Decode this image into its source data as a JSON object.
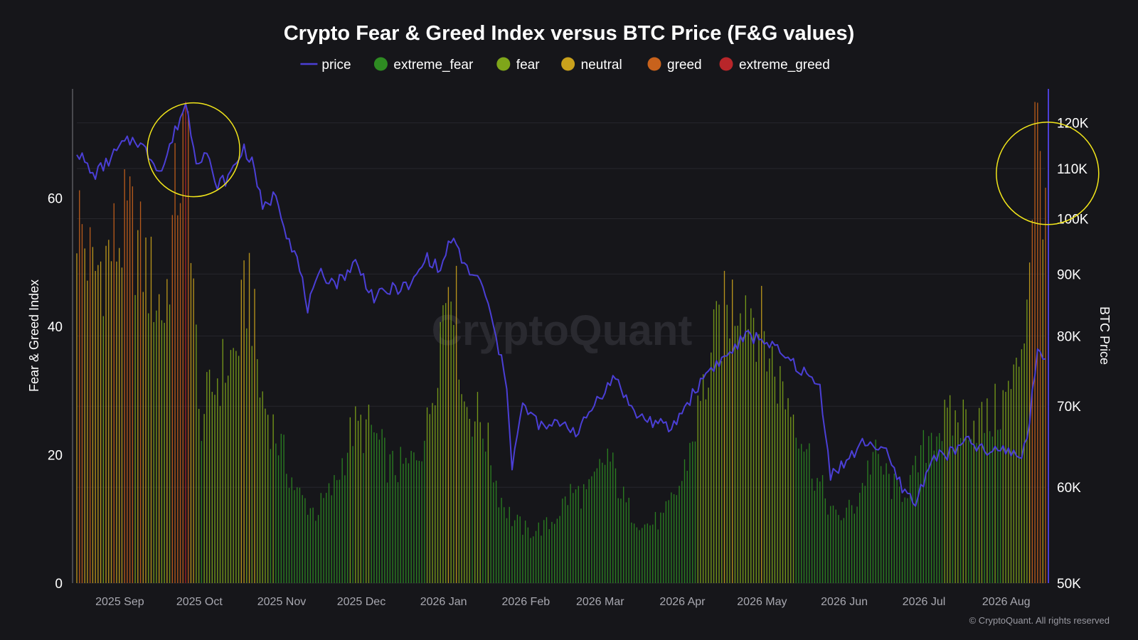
{
  "chart_data": {
    "type": "bar",
    "title": "Crypto Fear & Greed Index versus BTC Price (F&G values)",
    "legend": [
      {
        "name": "price",
        "color": "#4b3fd6",
        "marker": "line"
      },
      {
        "name": "extreme_fear",
        "color": "#2e8b22",
        "marker": "dot"
      },
      {
        "name": "fear",
        "color": "#7fa61a",
        "marker": "dot"
      },
      {
        "name": "neutral",
        "color": "#c9a11c",
        "marker": "dot"
      },
      {
        "name": "greed",
        "color": "#c8621c",
        "marker": "dot"
      },
      {
        "name": "extreme_greed",
        "color": "#b8262a",
        "marker": "dot"
      }
    ],
    "legend_position": "top-center",
    "ylabel": "Fear & Greed Index",
    "y2label": "BTC Price",
    "ylim": [
      0,
      77
    ],
    "yticks": [
      0,
      20,
      40,
      60
    ],
    "y2lim": [
      50000,
      128000
    ],
    "y2_scale": "log",
    "y2ticks": [
      {
        "value": 50000,
        "label": "50K"
      },
      {
        "value": 60000,
        "label": "60K"
      },
      {
        "value": 70000,
        "label": "70K"
      },
      {
        "value": 80000,
        "label": "80K"
      },
      {
        "value": 90000,
        "label": "90K"
      },
      {
        "value": 100000,
        "label": "100K"
      },
      {
        "value": 110000,
        "label": "110K"
      },
      {
        "value": 120000,
        "label": "120K"
      }
    ],
    "xrange": [
      "2025-08-26",
      "2026-08-26"
    ],
    "xticks": [
      {
        "date": "2025-09-01",
        "label": "2025 Sep"
      },
      {
        "date": "2025-10-01",
        "label": "2025 Oct"
      },
      {
        "date": "2025-11-01",
        "label": "2025 Nov"
      },
      {
        "date": "2025-12-01",
        "label": "2025 Dec"
      },
      {
        "date": "2026-01-01",
        "label": "2026 Jan"
      },
      {
        "date": "2026-02-01",
        "label": "2026 Feb"
      },
      {
        "date": "2026-03-01",
        "label": "2026 Mar"
      },
      {
        "date": "2026-04-01",
        "label": "2026 Apr"
      },
      {
        "date": "2026-05-01",
        "label": "2026 May"
      },
      {
        "date": "2026-06-01",
        "label": "2026 Jun"
      },
      {
        "date": "2026-07-01",
        "label": "2026 Jul"
      },
      {
        "date": "2026-08-01",
        "label": "2026 Aug"
      }
    ],
    "grid": true,
    "fg_series_approx": [
      [
        "2025-08-26",
        58
      ],
      [
        "2025-09-01",
        48
      ],
      [
        "2025-09-08",
        52
      ],
      [
        "2025-09-15",
        56
      ],
      [
        "2025-09-22",
        48
      ],
      [
        "2025-09-28",
        42
      ],
      [
        "2025-10-03",
        63
      ],
      [
        "2025-10-07",
        70
      ],
      [
        "2025-10-11",
        25
      ],
      [
        "2025-10-18",
        32
      ],
      [
        "2025-10-25",
        36
      ],
      [
        "2025-10-30",
        48
      ],
      [
        "2025-11-03",
        30
      ],
      [
        "2025-11-10",
        22
      ],
      [
        "2025-11-17",
        14
      ],
      [
        "2025-11-24",
        11
      ],
      [
        "2025-12-01",
        15
      ],
      [
        "2025-12-08",
        24
      ],
      [
        "2025-12-15",
        24
      ],
      [
        "2025-12-22",
        18
      ],
      [
        "2025-12-29",
        18
      ],
      [
        "2026-01-05",
        24
      ],
      [
        "2026-01-10",
        40
      ],
      [
        "2026-01-14",
        52
      ],
      [
        "2026-01-19",
        28
      ],
      [
        "2026-01-26",
        25
      ],
      [
        "2026-02-01",
        14
      ],
      [
        "2026-02-06",
        10
      ],
      [
        "2026-02-12",
        8
      ],
      [
        "2026-02-20",
        9
      ],
      [
        "2026-02-28",
        14
      ],
      [
        "2026-03-07",
        14
      ],
      [
        "2026-03-14",
        20
      ],
      [
        "2026-03-21",
        12
      ],
      [
        "2026-03-28",
        9
      ],
      [
        "2026-04-04",
        10
      ],
      [
        "2026-04-11",
        16
      ],
      [
        "2026-04-18",
        28
      ],
      [
        "2026-04-25",
        40
      ],
      [
        "2026-05-03",
        46
      ],
      [
        "2026-05-09",
        42
      ],
      [
        "2026-05-17",
        32
      ],
      [
        "2026-05-24",
        26
      ],
      [
        "2026-06-01",
        16
      ],
      [
        "2026-06-08",
        10
      ],
      [
        "2026-06-15",
        12
      ],
      [
        "2026-06-22",
        20
      ],
      [
        "2026-07-01",
        14
      ],
      [
        "2026-07-07",
        16
      ],
      [
        "2026-07-14",
        24
      ],
      [
        "2026-07-21",
        25
      ],
      [
        "2026-07-28",
        26
      ],
      [
        "2026-08-04",
        25
      ],
      [
        "2026-08-10",
        28
      ],
      [
        "2026-08-15",
        32
      ],
      [
        "2026-08-19",
        45
      ],
      [
        "2026-08-22",
        70
      ],
      [
        "2026-08-25",
        64
      ]
    ],
    "price_series_approx": [
      [
        "2025-08-26",
        114000
      ],
      [
        "2025-09-01",
        108500
      ],
      [
        "2025-09-06",
        111000
      ],
      [
        "2025-09-12",
        115000
      ],
      [
        "2025-09-17",
        116500
      ],
      [
        "2025-09-22",
        113000
      ],
      [
        "2025-09-27",
        109500
      ],
      [
        "2025-10-02",
        118000
      ],
      [
        "2025-10-06",
        124500
      ],
      [
        "2025-10-10",
        112000
      ],
      [
        "2025-10-14",
        113500
      ],
      [
        "2025-10-17",
        106500
      ],
      [
        "2025-10-22",
        108000
      ],
      [
        "2025-10-28",
        114500
      ],
      [
        "2025-11-01",
        110000
      ],
      [
        "2025-11-04",
        101500
      ],
      [
        "2025-11-09",
        105000
      ],
      [
        "2025-11-13",
        97500
      ],
      [
        "2025-11-17",
        92500
      ],
      [
        "2025-11-21",
        84500
      ],
      [
        "2025-11-26",
        90000
      ],
      [
        "2025-12-02",
        88500
      ],
      [
        "2025-12-09",
        92000
      ],
      [
        "2025-12-16",
        86000
      ],
      [
        "2025-12-23",
        87500
      ],
      [
        "2025-12-30",
        88000
      ],
      [
        "2026-01-05",
        93000
      ],
      [
        "2026-01-10",
        90500
      ],
      [
        "2026-01-14",
        96500
      ],
      [
        "2026-01-19",
        91500
      ],
      [
        "2026-01-26",
        88000
      ],
      [
        "2026-01-31",
        79500
      ],
      [
        "2026-02-04",
        73000
      ],
      [
        "2026-02-06",
        62500
      ],
      [
        "2026-02-10",
        70000
      ],
      [
        "2026-02-18",
        67000
      ],
      [
        "2026-02-25",
        68000
      ],
      [
        "2026-03-03",
        66500
      ],
      [
        "2026-03-10",
        71000
      ],
      [
        "2026-03-17",
        74000
      ],
      [
        "2026-03-24",
        69000
      ],
      [
        "2026-03-31",
        68000
      ],
      [
        "2026-04-07",
        67000
      ],
      [
        "2026-04-14",
        71000
      ],
      [
        "2026-04-21",
        75000
      ],
      [
        "2026-04-28",
        77000
      ],
      [
        "2026-05-05",
        80000
      ],
      [
        "2026-05-12",
        79500
      ],
      [
        "2026-05-19",
        77000
      ],
      [
        "2026-05-26",
        75000
      ],
      [
        "2026-06-02",
        72500
      ],
      [
        "2026-06-06",
        61500
      ],
      [
        "2026-06-12",
        63000
      ],
      [
        "2026-06-19",
        65500
      ],
      [
        "2026-06-26",
        64500
      ],
      [
        "2026-07-02",
        60500
      ],
      [
        "2026-07-08",
        58000
      ],
      [
        "2026-07-14",
        63500
      ],
      [
        "2026-07-21",
        64000
      ],
      [
        "2026-07-28",
        65500
      ],
      [
        "2026-08-04",
        64000
      ],
      [
        "2026-08-11",
        64500
      ],
      [
        "2026-08-17",
        63500
      ],
      [
        "2026-08-20",
        68000
      ],
      [
        "2026-08-23",
        78000
      ],
      [
        "2026-08-25",
        77500
      ]
    ],
    "annotations": [
      {
        "type": "circle",
        "color": "#f2e61a",
        "target": "early October 2025 peak (F&G and price highs)"
      },
      {
        "type": "circle",
        "color": "#f2e61a",
        "target": "late August 2026 spike"
      }
    ],
    "color_rules": {
      "extreme_fear_max": 25,
      "fear_max": 45,
      "neutral_max": 55,
      "greed_max": 75
    }
  },
  "watermark": "CryptoQuant",
  "copyright": "© CryptoQuant. All rights reserved"
}
